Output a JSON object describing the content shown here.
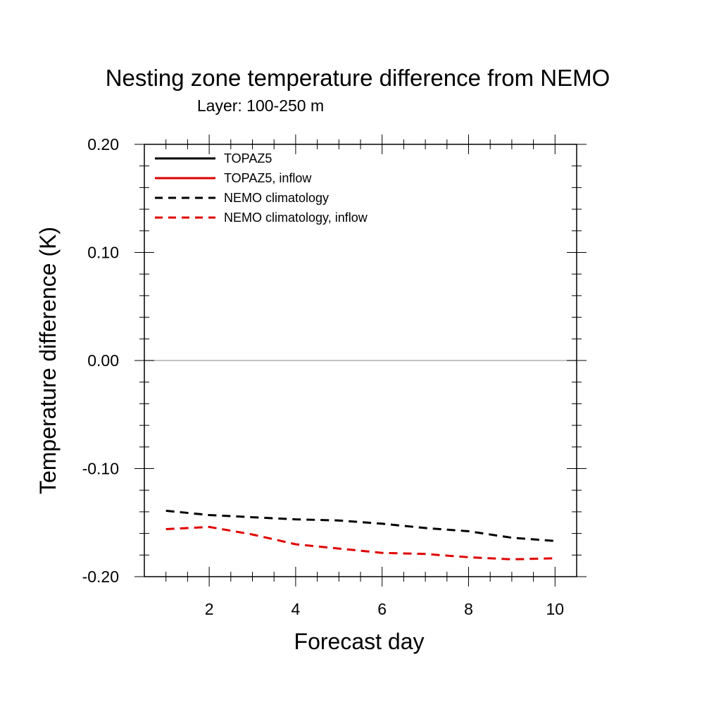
{
  "chart_data": {
    "type": "line",
    "title": "Nesting zone temperature difference from NEMO",
    "subtitle": "Layer: 100-250 m",
    "xlabel": "Forecast day",
    "ylabel": "Temperature difference (K)",
    "xlim": [
      0.5,
      10.5
    ],
    "ylim": [
      -0.2,
      0.2
    ],
    "x_ticks": [
      2,
      4,
      6,
      8,
      10
    ],
    "x_tick_labels": [
      "2",
      "4",
      "6",
      "8",
      "10"
    ],
    "y_ticks": [
      -0.2,
      -0.1,
      0.0,
      0.1,
      0.2
    ],
    "y_tick_labels": [
      "-0.20",
      "-0.10",
      "0.00",
      "0.10",
      "0.20"
    ],
    "reference_line": 0.0,
    "grid": false,
    "legend_position": "top-left",
    "series": [
      {
        "name": "TOPAZ5",
        "color": "#000000",
        "dash": "solid",
        "x": [],
        "y": []
      },
      {
        "name": "TOPAZ5, inflow",
        "color": "#e00000",
        "dash": "solid",
        "x": [],
        "y": []
      },
      {
        "name": "NEMO climatology",
        "color": "#000000",
        "dash": "dashed",
        "x": [
          1,
          2,
          3,
          4,
          5,
          6,
          7,
          8,
          9,
          10
        ],
        "y": [
          -0.139,
          -0.143,
          -0.145,
          -0.147,
          -0.148,
          -0.151,
          -0.155,
          -0.158,
          -0.164,
          -0.167
        ]
      },
      {
        "name": "NEMO climatology, inflow",
        "color": "#e00000",
        "dash": "dashed",
        "x": [
          1,
          2,
          3,
          4,
          5,
          6,
          7,
          8,
          9,
          10
        ],
        "y": [
          -0.156,
          -0.154,
          -0.161,
          -0.17,
          -0.174,
          -0.178,
          -0.179,
          -0.182,
          -0.184,
          -0.183
        ]
      }
    ]
  }
}
